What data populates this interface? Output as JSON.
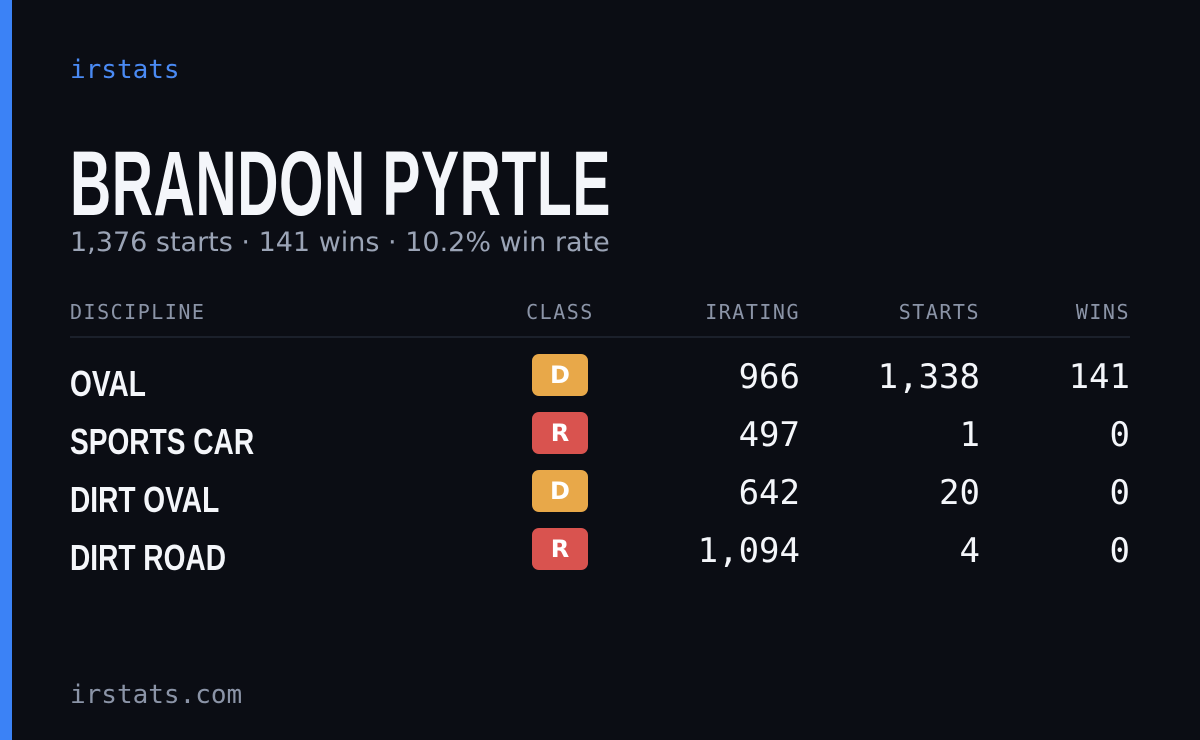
{
  "brand": "irstats",
  "name": "BRANDON PYRTLE",
  "summary": "1,376 starts · 141 wins · 10.2% win rate",
  "table": {
    "headers": [
      "DISCIPLINE",
      "CLASS",
      "IRATING",
      "STARTS",
      "WINS"
    ],
    "rows": [
      {
        "discipline": "OVAL",
        "class": "D",
        "class_color": "#e8a849",
        "irating": "966",
        "starts": "1,338",
        "wins": "141"
      },
      {
        "discipline": "SPORTS CAR",
        "class": "R",
        "class_color": "#d9534f",
        "irating": "497",
        "starts": "1",
        "wins": "0"
      },
      {
        "discipline": "DIRT OVAL",
        "class": "D",
        "class_color": "#e8a849",
        "irating": "642",
        "starts": "20",
        "wins": "0"
      },
      {
        "discipline": "DIRT ROAD",
        "class": "R",
        "class_color": "#d9534f",
        "irating": "1,094",
        "starts": "4",
        "wins": "0"
      }
    ]
  },
  "footer": "irstats.com"
}
